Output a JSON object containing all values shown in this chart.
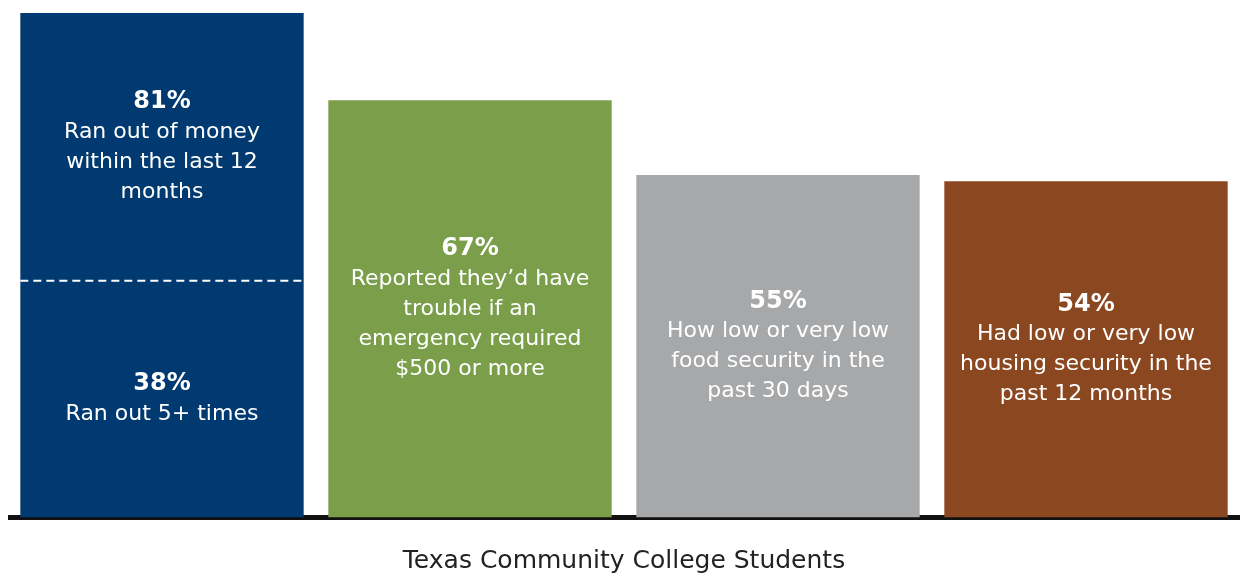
{
  "chart_data": {
    "type": "bar",
    "categories": [
      null,
      null,
      null,
      null
    ],
    "xlabel": "Texas Community College Students",
    "ylim": [
      0,
      81
    ],
    "legend": false,
    "grid": false,
    "ref_lines": [
      {
        "axis": "y",
        "value": 38,
        "label": "38%\nRan out 5+ times",
        "color": "#ffffff",
        "line_style": "dashed"
      }
    ],
    "series": [
      {
        "colors": [
          "#003a70",
          "#7a9e4a",
          "#a7a8aa",
          "#8b4720"
        ],
        "values": [
          81,
          67,
          55,
          54
        ],
        "value_labels": [
          "81%\nRan out of money within the last 12 months",
          "67%\nReported they’d have trouble if an emergency required $500 or more",
          "55%\nHow low or very low food security in the past 30 days",
          "54%\nHad low or very low housing security in the past 12 months"
        ]
      }
    ]
  }
}
